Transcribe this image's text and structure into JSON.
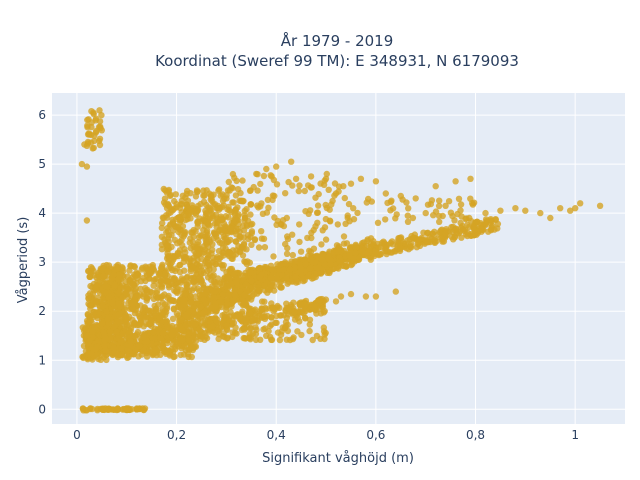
{
  "chart_data": {
    "type": "scatter",
    "title": "År 1979 - 2019",
    "subtitle": "Koordinat (Sweref 99 TM): E 348931, N 6179093",
    "xlabel": "Signifikant våghöjd (m)",
    "ylabel": "Vågperiod (s)",
    "xlim": [
      -0.05,
      1.1
    ],
    "ylim": [
      -0.3,
      6.45
    ],
    "x_ticks": [
      0,
      0.2,
      0.4,
      0.6,
      0.8,
      1
    ],
    "x_tick_labels": [
      "0",
      "0,2",
      "0,4",
      "0,6",
      "0,8",
      "1"
    ],
    "y_ticks": [
      0,
      1,
      2,
      3,
      4,
      5,
      6
    ],
    "y_tick_labels": [
      "0",
      "1",
      "2",
      "3",
      "4",
      "5",
      "6"
    ],
    "grid": true,
    "plot_background": "#e5ecf6",
    "marker_color": "#d4a424",
    "regions": [
      {
        "x": [
          0.01,
          0.14
        ],
        "y": [
          -0.02,
          0.02
        ],
        "count": 60
      },
      {
        "x": [
          0.02,
          0.05
        ],
        "y": [
          5.3,
          6.15
        ],
        "count": 35
      },
      {
        "x": [
          0.01,
          0.06
        ],
        "y": [
          1.0,
          1.7
        ],
        "count": 120
      },
      {
        "x": [
          0.02,
          0.09
        ],
        "y": [
          1.1,
          2.9
        ],
        "count": 350
      },
      {
        "x": [
          0.05,
          0.18
        ],
        "y": [
          1.1,
          2.95
        ],
        "count": 500
      },
      {
        "x": [
          0.08,
          0.24
        ],
        "y": [
          1.05,
          1.55
        ],
        "count": 160
      },
      {
        "x": [
          0.17,
          0.35
        ],
        "y": [
          1.4,
          4.5
        ],
        "count": 450
      },
      {
        "x": [
          0.18,
          0.32
        ],
        "y": [
          2.2,
          4.2
        ],
        "count": 260
      },
      {
        "x": [
          0.2,
          0.5
        ],
        "y": [
          1.4,
          2.2
        ],
        "count": 170
      },
      {
        "x": [
          0.3,
          0.55
        ],
        "y": [
          3.1,
          4.8
        ],
        "count": 160
      },
      {
        "x": [
          0.55,
          0.8
        ],
        "y": [
          3.8,
          4.3
        ],
        "count": 50
      }
    ],
    "bands": [
      {
        "x0": 0.1,
        "y0": 1.4,
        "x1": 0.5,
        "y1": 2.2,
        "spread": 0.12,
        "count": 230
      },
      {
        "x0": 0.2,
        "y0": 2.0,
        "x1": 0.6,
        "y1": 3.3,
        "spread": 0.22,
        "count": 550
      },
      {
        "x0": 0.3,
        "y0": 2.6,
        "x1": 0.85,
        "y1": 3.8,
        "spread": 0.14,
        "count": 420
      }
    ],
    "points": [
      [
        0.02,
        3.85
      ],
      [
        0.01,
        5.0
      ],
      [
        0.02,
        4.95
      ],
      [
        0.015,
        5.4
      ],
      [
        0.43,
        5.05
      ],
      [
        0.4,
        4.95
      ],
      [
        0.38,
        4.9
      ],
      [
        0.36,
        4.8
      ],
      [
        0.44,
        4.7
      ],
      [
        0.47,
        4.75
      ],
      [
        0.5,
        4.7
      ],
      [
        0.52,
        4.4
      ],
      [
        0.55,
        4.6
      ],
      [
        0.57,
        4.7
      ],
      [
        0.6,
        4.65
      ],
      [
        0.62,
        4.4
      ],
      [
        0.65,
        4.35
      ],
      [
        0.68,
        4.3
      ],
      [
        0.72,
        4.55
      ],
      [
        0.76,
        4.65
      ],
      [
        0.79,
        4.7
      ],
      [
        0.7,
        4.0
      ],
      [
        0.74,
        4.15
      ],
      [
        0.82,
        4.0
      ],
      [
        0.85,
        4.05
      ],
      [
        0.88,
        4.1
      ],
      [
        0.9,
        4.05
      ],
      [
        0.93,
        4.0
      ],
      [
        0.95,
        3.9
      ],
      [
        0.97,
        4.1
      ],
      [
        0.99,
        4.05
      ],
      [
        1.0,
        4.1
      ],
      [
        1.01,
        4.2
      ],
      [
        1.05,
        4.15
      ],
      [
        0.55,
        2.35
      ],
      [
        0.58,
        2.3
      ],
      [
        0.6,
        2.3
      ],
      [
        0.64,
        2.4
      ],
      [
        0.53,
        2.3
      ],
      [
        0.52,
        2.2
      ]
    ]
  }
}
